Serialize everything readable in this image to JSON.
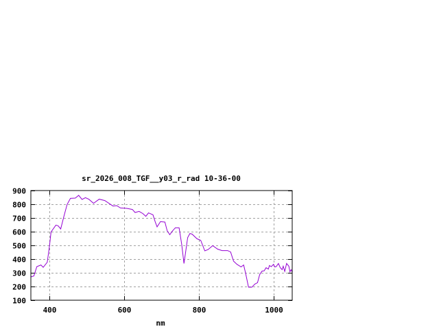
{
  "chart_data": {
    "type": "line",
    "title": "sr_2026_008_TGF__y03_r_rad 10-36-00",
    "xlabel": "nm",
    "ylabel": "",
    "xlim": [
      350,
      1050
    ],
    "ylim": [
      100,
      900
    ],
    "xticks": [
      400,
      600,
      800,
      1000
    ],
    "yticks": [
      100,
      200,
      300,
      400,
      500,
      600,
      700,
      800,
      900
    ],
    "grid": true,
    "line_color": "#9400d3",
    "series": [
      {
        "x": [
          350,
          358,
          366,
          377,
          383,
          394,
          400,
          404,
          417,
          423,
          430,
          438,
          447,
          456,
          469,
          478,
          487,
          496,
          505,
          518,
          533,
          548,
          570,
          580,
          590,
          607,
          622,
          629,
          640,
          650,
          658,
          665,
          677,
          683,
          688,
          697,
          709,
          715,
          722,
          730,
          737,
          747,
          754,
          760,
          764,
          770,
          776,
          782,
          795,
          805,
          816,
          825,
          837,
          850,
          862,
          877,
          885,
          893,
          902,
          913,
          920,
          925,
          933,
          942,
          950,
          957,
          963,
          969,
          975,
          980,
          986,
          989,
          994,
          1000,
          1003,
          1007,
          1013,
          1018,
          1023,
          1026,
          1030,
          1035,
          1041,
          1044,
          1047,
          1050
        ],
        "y": [
          270,
          277,
          345,
          357,
          340,
          377,
          498,
          598,
          648,
          643,
          620,
          707,
          798,
          843,
          845,
          865,
          835,
          848,
          837,
          807,
          837,
          827,
          787,
          790,
          773,
          770,
          762,
          740,
          748,
          732,
          712,
          737,
          723,
          673,
          635,
          673,
          670,
          607,
          578,
          607,
          628,
          628,
          507,
          368,
          440,
          557,
          587,
          582,
          548,
          537,
          460,
          470,
          498,
          473,
          462,
          462,
          452,
          385,
          362,
          343,
          357,
          298,
          195,
          195,
          218,
          228,
          287,
          312,
          315,
          337,
          327,
          353,
          345,
          362,
          343,
          345,
          368,
          337,
          323,
          348,
          310,
          368,
          348,
          307,
          323,
          305
        ]
      }
    ]
  }
}
